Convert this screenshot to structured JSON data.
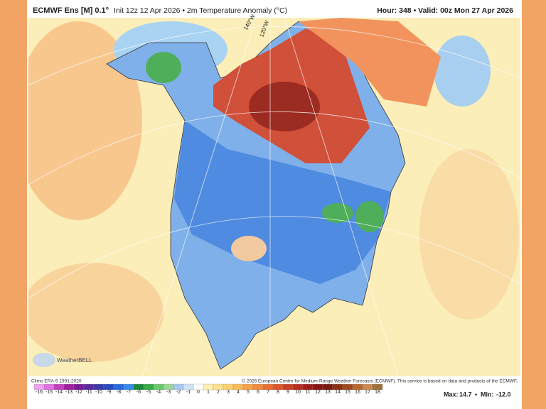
{
  "header": {
    "model": "ECMWF Ens [M] 0.1°",
    "info": "Init 12z 12 Apr 2026 • 2m Temperature Anomaly (°C)",
    "valid": "Hour: 348 • Valid: 00z Mon 27 Apr 2026"
  },
  "map": {
    "graticule_labels": [
      "140°W",
      "120°W"
    ],
    "logo": "WeatherBELL"
  },
  "footer": {
    "climo": "Climo ERA-5 1991-2020",
    "copyright": "© 2026 European Centre for Medium-Range Weather Forecasts (ECMWF). This service is based on data and products of the ECMWF.",
    "colorbar": [
      -16,
      -15,
      -14,
      -13,
      -12,
      -11,
      -10,
      -9,
      -8,
      -7,
      -6,
      -5,
      -4,
      -3,
      -2,
      -1,
      0,
      1,
      2,
      3,
      4,
      5,
      6,
      7,
      8,
      9,
      10,
      11,
      12,
      13,
      14,
      15,
      16,
      17,
      18
    ],
    "max_label": "Max:",
    "max": "14.7",
    "min_label": "Min:",
    "min": "-12.0"
  }
}
